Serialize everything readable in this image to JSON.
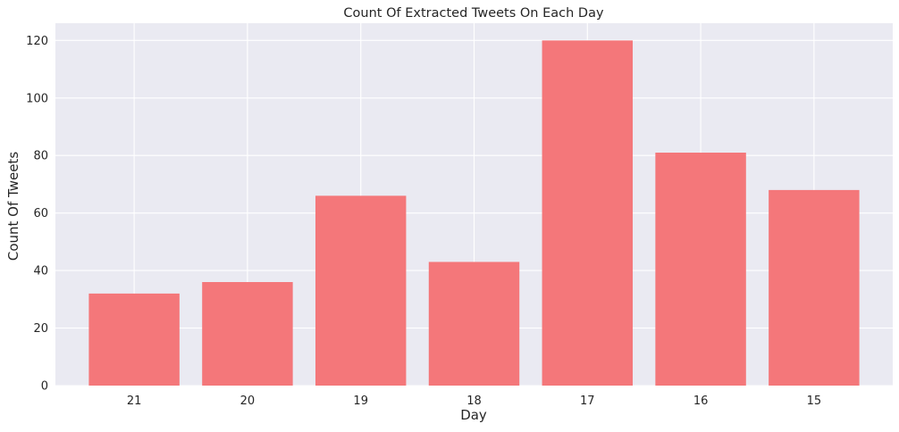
{
  "chart_data": {
    "type": "bar",
    "title": "Count Of Extracted Tweets On Each Day",
    "xlabel": "Day",
    "ylabel": "Count Of Tweets",
    "categories": [
      "21",
      "20",
      "19",
      "18",
      "17",
      "16",
      "15"
    ],
    "values": [
      32,
      36,
      66,
      43,
      120,
      81,
      68
    ],
    "ylim": [
      0,
      126
    ],
    "yticks": [
      0,
      20,
      40,
      60,
      80,
      100,
      120
    ],
    "grid": true,
    "legend": "none",
    "colors": {
      "bar": "#f4777a",
      "plot_background": "#eaeaf2",
      "grid": "#ffffff",
      "text": "#262626"
    }
  }
}
